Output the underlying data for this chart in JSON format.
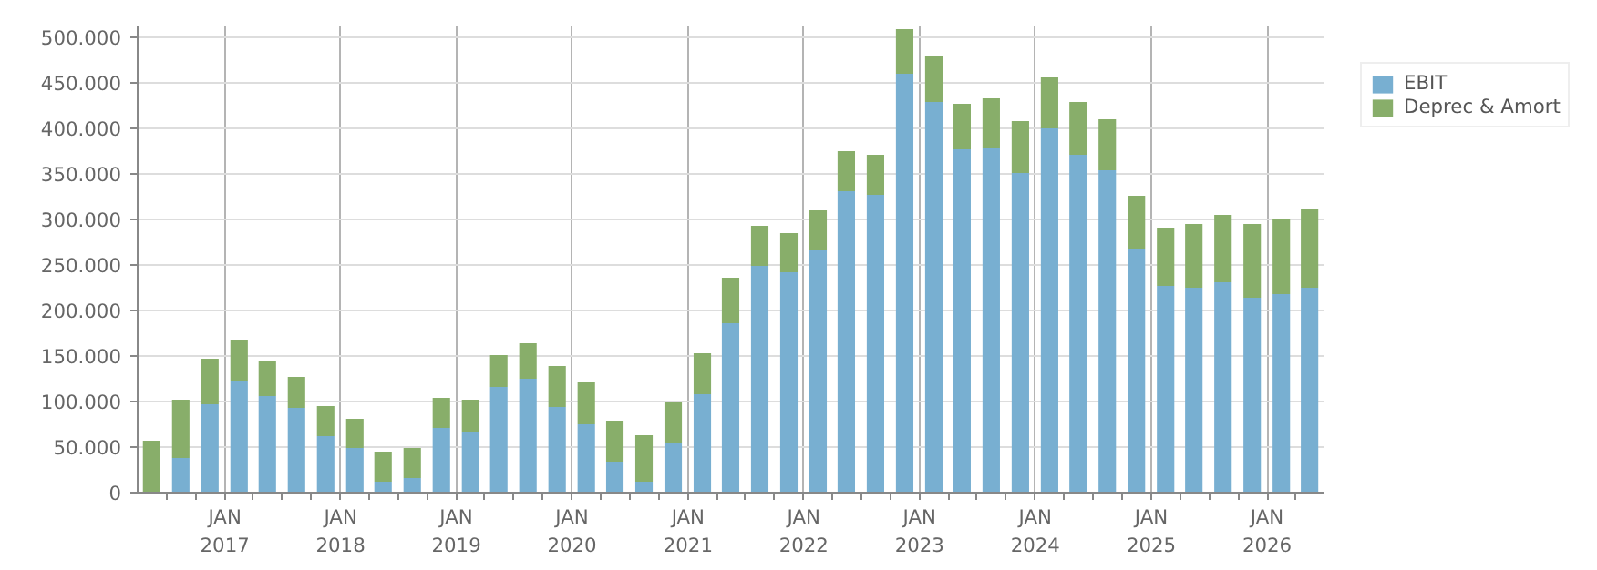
{
  "chart_data": {
    "type": "bar",
    "stacked": true,
    "x": [
      "2016-05-15",
      "2016-08-15",
      "2016-11-15",
      "2017-02-15",
      "2017-05-15",
      "2017-08-15",
      "2017-11-15",
      "2018-02-15",
      "2018-05-15",
      "2018-08-15",
      "2018-11-15",
      "2019-02-15",
      "2019-05-15",
      "2019-08-15",
      "2019-11-15",
      "2020-02-15",
      "2020-05-15",
      "2020-08-15",
      "2020-11-15",
      "2021-02-15",
      "2021-05-15",
      "2021-08-15",
      "2021-11-15",
      "2022-02-15",
      "2022-05-15",
      "2022-08-15",
      "2022-11-15",
      "2023-02-15",
      "2023-05-15",
      "2023-08-15",
      "2023-11-15",
      "2024-02-15",
      "2024-05-15",
      "2024-08-15",
      "2024-11-15",
      "2025-02-15",
      "2025-05-15",
      "2025-08-15",
      "2025-11-15",
      "2026-02-15",
      "2026-05-15"
    ],
    "series": [
      {
        "name": "EBIT",
        "color": "#78afd1",
        "values": [
          0,
          38000,
          97000,
          123000,
          106000,
          93000,
          62000,
          49000,
          12000,
          16000,
          71000,
          67000,
          116000,
          125000,
          94000,
          75000,
          34000,
          12000,
          55000,
          108000,
          186000,
          249000,
          242000,
          266000,
          331000,
          327000,
          460000,
          429000,
          377000,
          379000,
          351000,
          400000,
          371000,
          354000,
          268000,
          227000,
          225000,
          231000,
          214000,
          218000,
          225000
        ]
      },
      {
        "name": "Deprec & Amort",
        "color": "#88ae6a",
        "values": [
          57000,
          64000,
          50000,
          45000,
          39000,
          34000,
          33000,
          32000,
          33000,
          33000,
          33000,
          35000,
          35000,
          39000,
          45000,
          46000,
          45000,
          51000,
          45000,
          45000,
          50000,
          44000,
          43000,
          44000,
          44000,
          44000,
          49000,
          51000,
          50000,
          54000,
          57000,
          56000,
          58000,
          56000,
          58000,
          64000,
          70000,
          74000,
          81000,
          83000,
          87000
        ]
      }
    ],
    "xlim": [
      "2016-04-01",
      "2026-07-01"
    ],
    "xticks": [
      {
        "value": "2016-07-01",
        "label": null
      },
      {
        "value": "2016-10-01",
        "label": null
      },
      {
        "value": "2017-01-01",
        "label": "JAN\n2017"
      },
      {
        "value": "2017-04-01",
        "label": null
      },
      {
        "value": "2017-07-01",
        "label": null
      },
      {
        "value": "2017-10-01",
        "label": null
      },
      {
        "value": "2018-01-01",
        "label": "JAN\n2018"
      },
      {
        "value": "2018-04-01",
        "label": null
      },
      {
        "value": "2018-07-01",
        "label": null
      },
      {
        "value": "2018-10-01",
        "label": null
      },
      {
        "value": "2019-01-01",
        "label": "JAN\n2019"
      },
      {
        "value": "2019-04-01",
        "label": null
      },
      {
        "value": "2019-07-01",
        "label": null
      },
      {
        "value": "2019-10-01",
        "label": null
      },
      {
        "value": "2020-01-01",
        "label": "JAN\n2020"
      },
      {
        "value": "2020-04-01",
        "label": null
      },
      {
        "value": "2020-07-01",
        "label": null
      },
      {
        "value": "2020-10-01",
        "label": null
      },
      {
        "value": "2021-01-01",
        "label": "JAN\n2021"
      },
      {
        "value": "2021-04-01",
        "label": null
      },
      {
        "value": "2021-07-01",
        "label": null
      },
      {
        "value": "2021-10-01",
        "label": null
      },
      {
        "value": "2022-01-01",
        "label": "JAN\n2022"
      },
      {
        "value": "2022-04-01",
        "label": null
      },
      {
        "value": "2022-07-01",
        "label": null
      },
      {
        "value": "2022-10-01",
        "label": null
      },
      {
        "value": "2023-01-01",
        "label": "JAN\n2023"
      },
      {
        "value": "2023-04-01",
        "label": null
      },
      {
        "value": "2023-07-01",
        "label": null
      },
      {
        "value": "2023-10-01",
        "label": null
      },
      {
        "value": "2024-01-01",
        "label": "JAN\n2024"
      },
      {
        "value": "2024-04-01",
        "label": null
      },
      {
        "value": "2024-07-01",
        "label": null
      },
      {
        "value": "2024-10-01",
        "label": null
      },
      {
        "value": "2025-01-01",
        "label": "JAN\n2025"
      },
      {
        "value": "2025-04-01",
        "label": null
      },
      {
        "value": "2025-07-01",
        "label": null
      },
      {
        "value": "2025-10-01",
        "label": null
      },
      {
        "value": "2026-01-01",
        "label": "JAN\n2026"
      },
      {
        "value": "2026-04-01",
        "label": null
      }
    ],
    "ylim": [
      0,
      512000
    ],
    "yticks": [
      0,
      {
        "value": 50000,
        "label": "50.000"
      },
      {
        "value": 100000,
        "label": "100.000"
      },
      {
        "value": 150000,
        "label": "150.000"
      },
      {
        "value": 200000,
        "label": "200.000"
      },
      {
        "value": 250000,
        "label": "250.000"
      },
      {
        "value": 300000,
        "label": "300.000"
      },
      {
        "value": 350000,
        "label": "350.000"
      },
      {
        "value": 400000,
        "label": "400.000"
      },
      {
        "value": 450000,
        "label": "450.000"
      },
      {
        "value": 500000,
        "label": "500.000"
      }
    ],
    "grid": true,
    "legend": "top right"
  }
}
